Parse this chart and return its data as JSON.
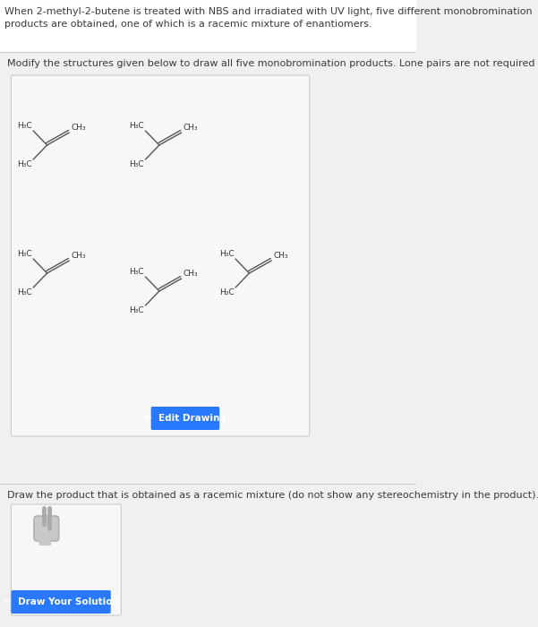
{
  "header_text_line1": "When 2-methyl-2-butene is treated with NBS and irradiated with UV light, five different monobromination",
  "header_text_line2": "products are obtained, one of which is a racemic mixture of enantiomers.",
  "section1_text": "Modify the structures given below to draw all five monobromination products. Lone pairs are not required",
  "section2_text": "Draw the product that is obtained as a racemic mixture (do not show any stereochemistry in the product).",
  "edit_btn_text": "Edit Drawing",
  "draw_btn_text": "Draw Your Solution",
  "page_bg": "#f0f0f0",
  "header_bg": "#f0f0f0",
  "section1_bg": "#f0f0f0",
  "drawing_box_bg": "#f0f0f0",
  "section2_bg": "#f0f0f0",
  "white_box_bg": "#f5f5f5",
  "blue_btn": "#2979FF",
  "separator_color": "#cccccc",
  "text_color": "#3a3a3a",
  "bond_color": "#555555",
  "label_color": "#333333",
  "header_fontsize": 8.0,
  "section_fontsize": 8.0,
  "mol_label_fontsize": 6.5,
  "btn_fontsize": 7.5
}
